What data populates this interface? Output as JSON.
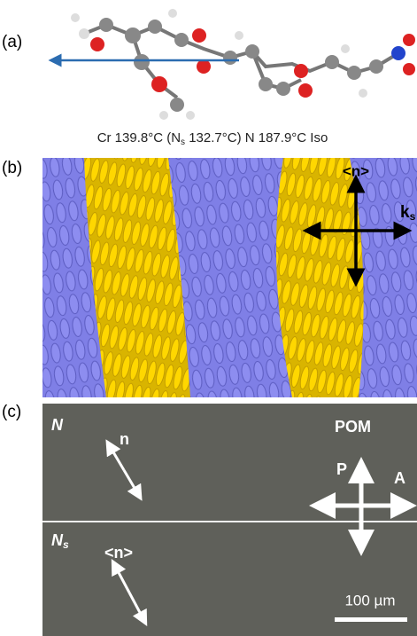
{
  "panel_a": {
    "label": "(a)",
    "caption": {
      "main": "Cr 139.8°C (N",
      "sub": "s",
      "rest": " 132.7°C) N 187.9°C Iso"
    }
  },
  "panel_b": {
    "label": "(b)",
    "director": "<n>",
    "k": {
      "main": "k",
      "sub": "s"
    }
  },
  "panel_c": {
    "label": "(c)",
    "pom": "POM",
    "polarizer": "P",
    "analyzer": "A",
    "scale_bar": "100 µm",
    "top": {
      "phase": "N",
      "director": "n"
    },
    "bottom": {
      "phase": {
        "main": "N",
        "sub": "s"
      },
      "director": "<n>"
    }
  }
}
